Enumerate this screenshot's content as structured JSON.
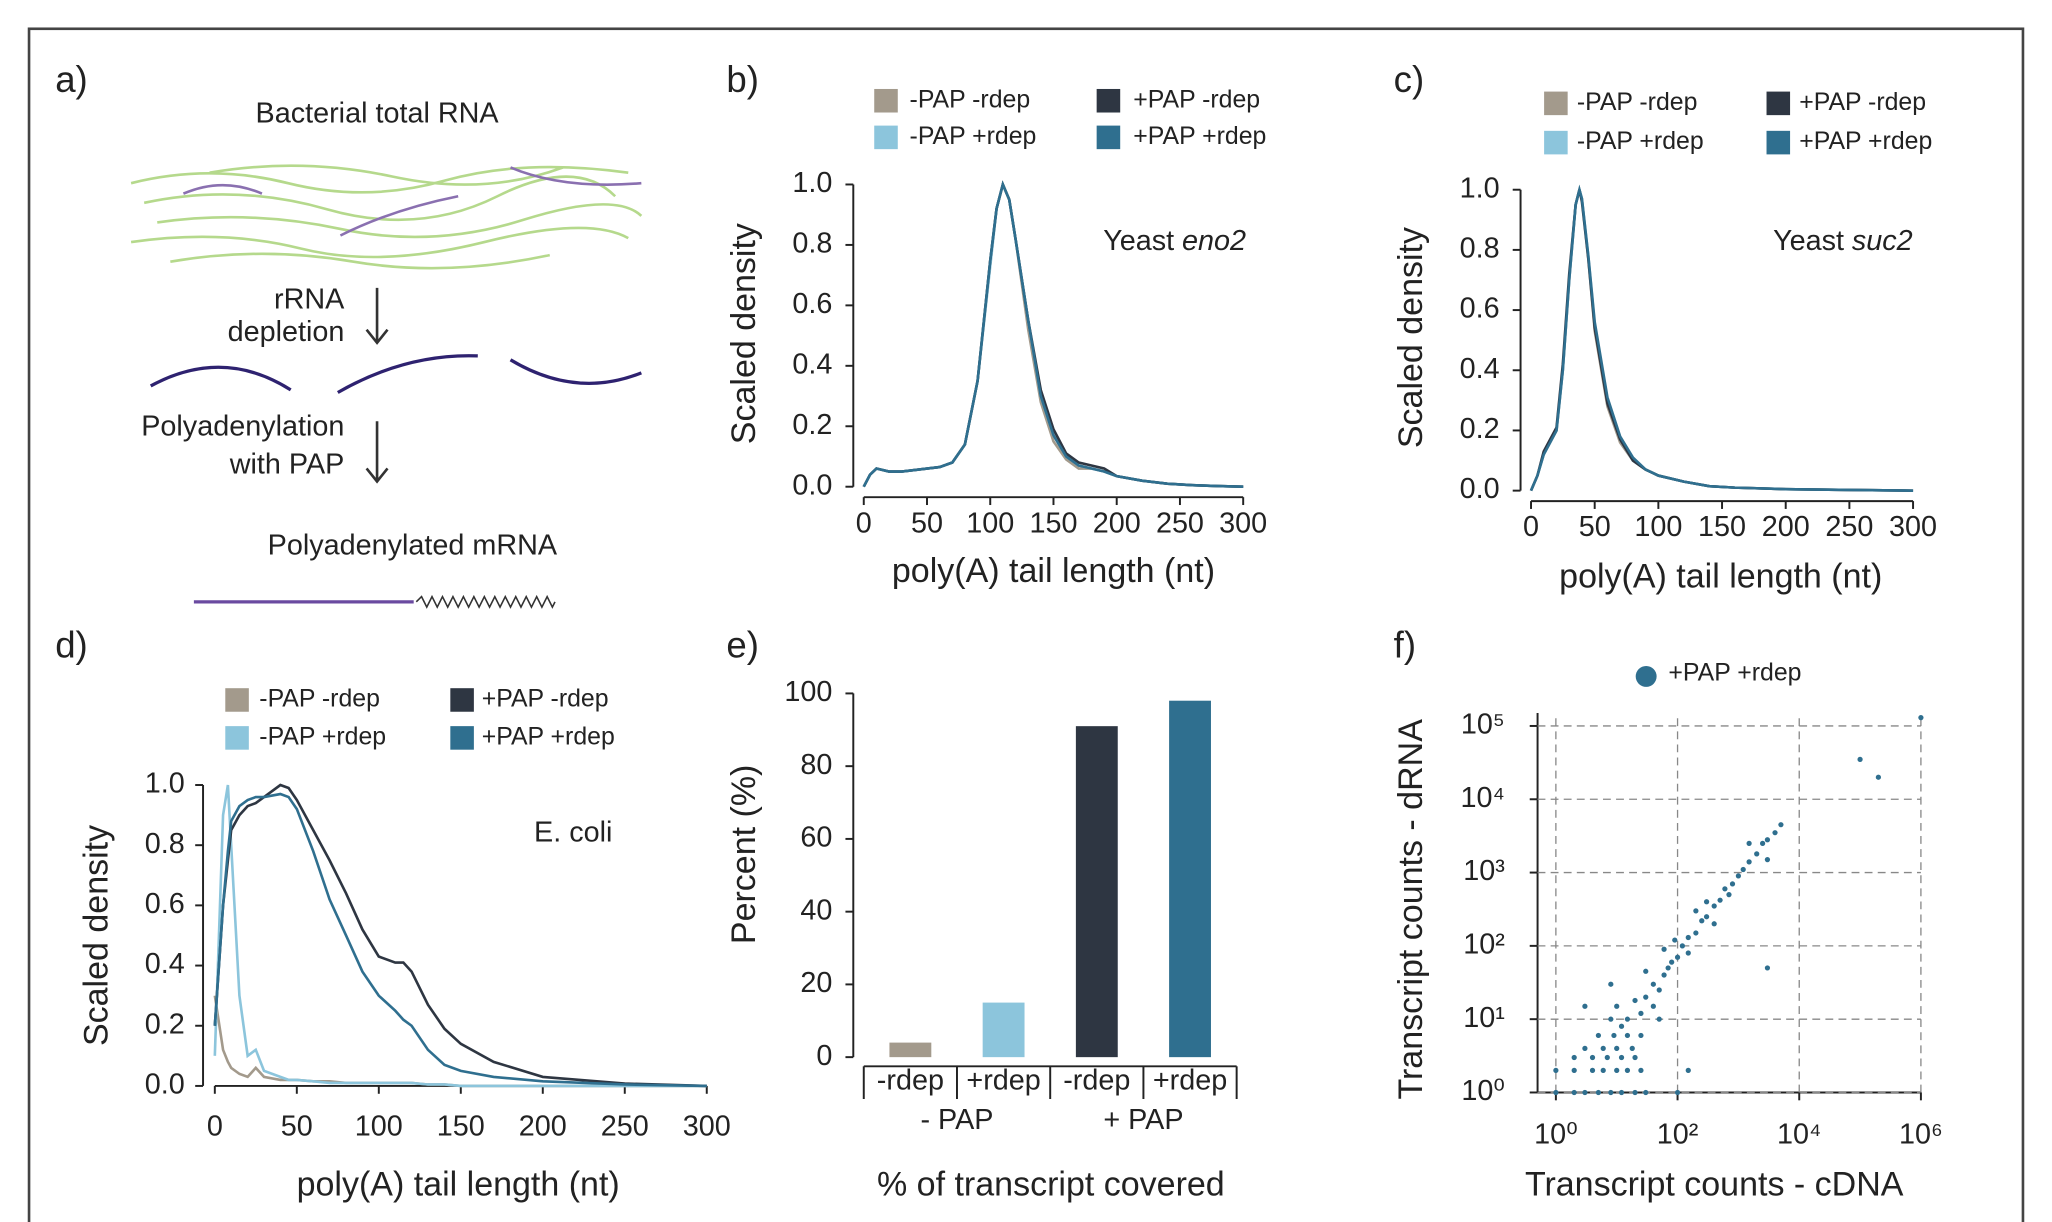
{
  "diagram": {
    "label": "a)",
    "title": "Bacterial total RNA",
    "step1": [
      "rRNA",
      "depletion"
    ],
    "step2": [
      "Polyadenylation",
      "with PAP"
    ],
    "result": "Polyadenylated mRNA"
  },
  "chart_data": [
    {
      "type": "line",
      "panel": "b)",
      "annotation": [
        "Yeast",
        "eno2"
      ],
      "x_label": "poly(A) tail length (nt)",
      "y_label": "Scaled density",
      "x": [
        0,
        5,
        10,
        20,
        30,
        40,
        50,
        60,
        70,
        80,
        90,
        100,
        105,
        110,
        115,
        120,
        130,
        140,
        150,
        160,
        170,
        180,
        190,
        200,
        220,
        240,
        260,
        280,
        300
      ],
      "series": [
        {
          "name": "-PAP -rdep",
          "color": "#a39a8c",
          "values": [
            0,
            0.04,
            0.06,
            0.05,
            0.05,
            0.055,
            0.06,
            0.065,
            0.08,
            0.14,
            0.35,
            0.75,
            0.92,
            1.0,
            0.95,
            0.82,
            0.52,
            0.28,
            0.15,
            0.09,
            0.06,
            0.06,
            0.05,
            0.035,
            0.02,
            0.01,
            0.005,
            0.002,
            0
          ]
        },
        {
          "name": "-PAP +rdep",
          "color": "#8cc5dc",
          "values": [
            0,
            0.04,
            0.06,
            0.05,
            0.05,
            0.055,
            0.06,
            0.065,
            0.08,
            0.14,
            0.35,
            0.73,
            0.92,
            1.0,
            0.95,
            0.82,
            0.55,
            0.3,
            0.17,
            0.1,
            0.07,
            0.06,
            0.05,
            0.035,
            0.02,
            0.01,
            0.005,
            0.002,
            0
          ]
        },
        {
          "name": "+PAP -rdep",
          "color": "#2e3642",
          "values": [
            0,
            0.04,
            0.06,
            0.05,
            0.05,
            0.055,
            0.06,
            0.065,
            0.08,
            0.14,
            0.35,
            0.75,
            0.92,
            1.0,
            0.95,
            0.82,
            0.55,
            0.32,
            0.19,
            0.11,
            0.08,
            0.07,
            0.06,
            0.035,
            0.02,
            0.01,
            0.005,
            0.002,
            0
          ]
        },
        {
          "name": "+PAP +rdep",
          "color": "#2f6f8f",
          "values": [
            0,
            0.04,
            0.06,
            0.05,
            0.05,
            0.055,
            0.06,
            0.065,
            0.08,
            0.14,
            0.35,
            0.75,
            0.92,
            1.0,
            0.95,
            0.82,
            0.55,
            0.3,
            0.17,
            0.1,
            0.07,
            0.06,
            0.05,
            0.035,
            0.02,
            0.01,
            0.005,
            0.002,
            0
          ]
        }
      ],
      "xlim": [
        0,
        300
      ],
      "ylim": [
        0,
        1
      ],
      "xticks": [
        0,
        50,
        100,
        150,
        200,
        250,
        300
      ],
      "yticks": [
        {
          "value": 0,
          "label": "0.0"
        },
        0.2,
        0.4,
        0.6,
        0.8,
        {
          "value": 1,
          "label": "1.0"
        }
      ]
    },
    {
      "type": "line",
      "panel": "c)",
      "annotation": [
        "Yeast",
        "suc2"
      ],
      "x_label": "poly(A) tail length (nt)",
      "y_label": "Scaled density",
      "x": [
        0,
        5,
        10,
        20,
        25,
        30,
        35,
        38,
        40,
        45,
        50,
        60,
        70,
        80,
        90,
        100,
        120,
        140,
        160,
        200,
        250,
        300
      ],
      "series": [
        {
          "name": "-PAP -rdep",
          "color": "#a39a8c",
          "values": [
            0,
            0.05,
            0.12,
            0.2,
            0.4,
            0.7,
            0.95,
            1.0,
            0.97,
            0.77,
            0.53,
            0.28,
            0.16,
            0.1,
            0.07,
            0.05,
            0.03,
            0.015,
            0.01,
            0.005,
            0.002,
            0
          ]
        },
        {
          "name": "-PAP +rdep",
          "color": "#8cc5dc",
          "values": [
            0,
            0.05,
            0.12,
            0.2,
            0.4,
            0.7,
            0.95,
            1.0,
            0.97,
            0.78,
            0.55,
            0.3,
            0.17,
            0.1,
            0.07,
            0.05,
            0.03,
            0.015,
            0.01,
            0.005,
            0.002,
            0
          ]
        },
        {
          "name": "+PAP -rdep",
          "color": "#2e3642",
          "values": [
            0,
            0.05,
            0.13,
            0.21,
            0.42,
            0.72,
            0.95,
            1.0,
            0.96,
            0.77,
            0.54,
            0.29,
            0.17,
            0.1,
            0.07,
            0.05,
            0.03,
            0.015,
            0.01,
            0.005,
            0.002,
            0
          ]
        },
        {
          "name": "+PAP +rdep",
          "color": "#2f6f8f",
          "values": [
            0,
            0.05,
            0.12,
            0.2,
            0.4,
            0.7,
            0.95,
            1.0,
            0.97,
            0.78,
            0.56,
            0.31,
            0.18,
            0.11,
            0.07,
            0.05,
            0.03,
            0.015,
            0.01,
            0.005,
            0.002,
            0
          ]
        }
      ],
      "xlim": [
        0,
        300
      ],
      "ylim": [
        0,
        1
      ],
      "xticks": [
        0,
        50,
        100,
        150,
        200,
        250,
        300
      ],
      "yticks": [
        {
          "value": 0,
          "label": "0.0"
        },
        0.2,
        0.4,
        0.6,
        0.8,
        {
          "value": 1,
          "label": "1.0"
        }
      ]
    },
    {
      "type": "line",
      "panel": "d)",
      "annotation": [
        "E. coli"
      ],
      "x_label": "poly(A) tail length (nt)",
      "y_label": "Scaled density",
      "x": [
        0,
        5,
        8,
        10,
        15,
        20,
        25,
        30,
        40,
        45,
        50,
        60,
        70,
        80,
        90,
        100,
        110,
        115,
        120,
        130,
        140,
        150,
        170,
        200,
        250,
        300
      ],
      "series": [
        {
          "name": "-PAP -rdep",
          "color": "#a39a8c",
          "values": [
            0.3,
            0.12,
            0.08,
            0.06,
            0.04,
            0.03,
            0.06,
            0.03,
            0.02,
            0.02,
            0.02,
            0.015,
            0.015,
            0.01,
            0.01,
            0.01,
            0.01,
            0.01,
            0.01,
            0.005,
            0.005,
            0,
            0,
            0,
            0,
            0
          ]
        },
        {
          "name": "-PAP +rdep",
          "color": "#8cc5dc",
          "values": [
            0.1,
            0.9,
            1.0,
            0.8,
            0.3,
            0.1,
            0.12,
            0.05,
            0.03,
            0.02,
            0.02,
            0.015,
            0.01,
            0.01,
            0.01,
            0.01,
            0.01,
            0.01,
            0.01,
            0.005,
            0.005,
            0,
            0,
            0,
            0,
            0
          ]
        },
        {
          "name": "+PAP -rdep",
          "color": "#2e3642",
          "values": [
            0.2,
            0.6,
            0.75,
            0.85,
            0.9,
            0.93,
            0.94,
            0.96,
            1.0,
            0.99,
            0.95,
            0.85,
            0.75,
            0.64,
            0.52,
            0.43,
            0.41,
            0.41,
            0.38,
            0.27,
            0.19,
            0.14,
            0.08,
            0.03,
            0.008,
            0
          ]
        },
        {
          "name": "+PAP +rdep",
          "color": "#2f6f8f",
          "values": [
            0.2,
            0.6,
            0.78,
            0.88,
            0.93,
            0.95,
            0.96,
            0.96,
            0.97,
            0.96,
            0.92,
            0.78,
            0.62,
            0.5,
            0.38,
            0.3,
            0.25,
            0.22,
            0.2,
            0.12,
            0.07,
            0.05,
            0.03,
            0.015,
            0.005,
            0
          ]
        }
      ],
      "xlim": [
        0,
        300
      ],
      "ylim": [
        0,
        1
      ],
      "xticks": [
        0,
        50,
        100,
        150,
        200,
        250,
        300
      ],
      "yticks": [
        {
          "value": 0,
          "label": "0.0"
        },
        0.2,
        0.4,
        0.6,
        0.8,
        {
          "value": 1,
          "label": "1.0"
        }
      ]
    },
    {
      "type": "bar",
      "panel": "e)",
      "x_label": "% of transcript covered",
      "y_label": "Percent (%)",
      "categories": [
        "-rdep",
        "+rdep",
        "-rdep",
        "+rdep"
      ],
      "groups": [
        "- PAP",
        "+ PAP"
      ],
      "values": [
        4,
        15,
        91,
        98
      ],
      "colors": [
        "#a39a8c",
        "#8cc5dc",
        "#2e3642",
        "#2f6f8f"
      ],
      "ylim": [
        0,
        100
      ],
      "yticks": [
        0,
        20,
        40,
        60,
        80,
        100
      ]
    },
    {
      "type": "scatter",
      "panel": "f)",
      "x_label": "Transcript counts - cDNA",
      "y_label": "Transcript counts - dRNA",
      "xscale": "log",
      "yscale": "log",
      "grid": true,
      "series": [
        {
          "name": "+PAP +rdep",
          "color": "#2f6f8f",
          "x": [
            1,
            2,
            3,
            5,
            8,
            12,
            20,
            30,
            1,
            2,
            4,
            6,
            10,
            15,
            25,
            2,
            4,
            7,
            12,
            20,
            3,
            6,
            10,
            18,
            5,
            9,
            15,
            25,
            8,
            15,
            25,
            40,
            12,
            30,
            50,
            20,
            60,
            80,
            100,
            40,
            70,
            120,
            150,
            200,
            250,
            300,
            400,
            500,
            600,
            800,
            1000,
            1200,
            1500,
            2000,
            2500,
            3000,
            4000,
            5000,
            150,
            90,
            300,
            700,
            1500,
            3000,
            60,
            200,
            30,
            400,
            10,
            8,
            50,
            1000000,
            200000,
            100000,
            3000,
            100,
            150,
            3
          ],
          "values": [
            1,
            1,
            1,
            1,
            1,
            1,
            1,
            1,
            2,
            2,
            2,
            2,
            2,
            2,
            2,
            3,
            3,
            3,
            3,
            3,
            4,
            4,
            4,
            4,
            6,
            6,
            6,
            6,
            10,
            10,
            12,
            15,
            8,
            20,
            25,
            18,
            40,
            60,
            70,
            30,
            50,
            100,
            130,
            150,
            220,
            250,
            350,
            420,
            600,
            700,
            900,
            1100,
            1400,
            1800,
            2500,
            2800,
            3500,
            4500,
            80,
            120,
            400,
            500,
            2500,
            1500,
            90,
            300,
            45,
            200,
            15,
            30,
            10,
            130000,
            20000,
            35000,
            50,
            1,
            2,
            15
          ]
        }
      ],
      "xlim": [
        0.5,
        1000000
      ],
      "ylim": [
        1,
        150000
      ],
      "xticks": [
        {
          "value": 1,
          "label": "10⁰"
        },
        {
          "value": 100,
          "label": "10²"
        },
        {
          "value": 10000,
          "label": "10⁴"
        },
        {
          "value": 1000000,
          "label": "10⁶"
        }
      ],
      "yticks": [
        {
          "value": 1,
          "label": "10⁰"
        },
        {
          "value": 10,
          "label": "10¹"
        },
        {
          "value": 100,
          "label": "10²"
        },
        {
          "value": 1000,
          "label": "10³"
        },
        {
          "value": 10000,
          "label": "10⁴"
        },
        {
          "value": 100000,
          "label": "10⁵"
        }
      ]
    }
  ]
}
